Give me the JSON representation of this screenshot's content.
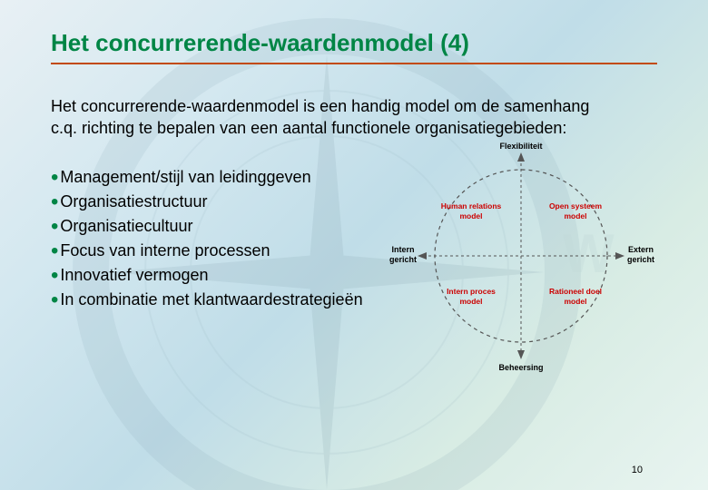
{
  "colors": {
    "title": "#008545",
    "underline": "#c24a08",
    "bullet": "#008545",
    "text": "#000000",
    "pagenum": "#000000",
    "diagram_border": "#555555",
    "diagram_axis": "#555555",
    "quad_red": "#cc0000"
  },
  "title": "Het concurrerende-waardenmodel (4)",
  "intro": "Het concurrerende-waardenmodel is een handig model om de samenhang c.q. richting te bepalen van een aantal functionele organisatiegebieden:",
  "bullets": [
    "Management/stijl van leidinggeven",
    "Organisatiestructuur",
    "Organisatiecultuur",
    "Focus van interne processen",
    "Innovatief vermogen",
    "In combinatie met klantwaardestrategieën"
  ],
  "diagram": {
    "type": "quadrant",
    "axis_top": "Flexibiliteit",
    "axis_bottom": "Beheersing",
    "axis_left_1": "Intern",
    "axis_left_2": "gericht",
    "axis_right_1": "Extern",
    "axis_right_2": "gericht",
    "q_tl_1": "Human relations",
    "q_tl_2": "model",
    "q_tr_1": "Open systeem",
    "q_tr_2": "model",
    "q_bl_1": "Intern proces",
    "q_bl_2": "model",
    "q_br_1": "Rationeel doel",
    "q_br_2": "model",
    "circle_dash": "4,4",
    "axis_dash": "3,3",
    "radius": 95
  },
  "page_number": "10"
}
